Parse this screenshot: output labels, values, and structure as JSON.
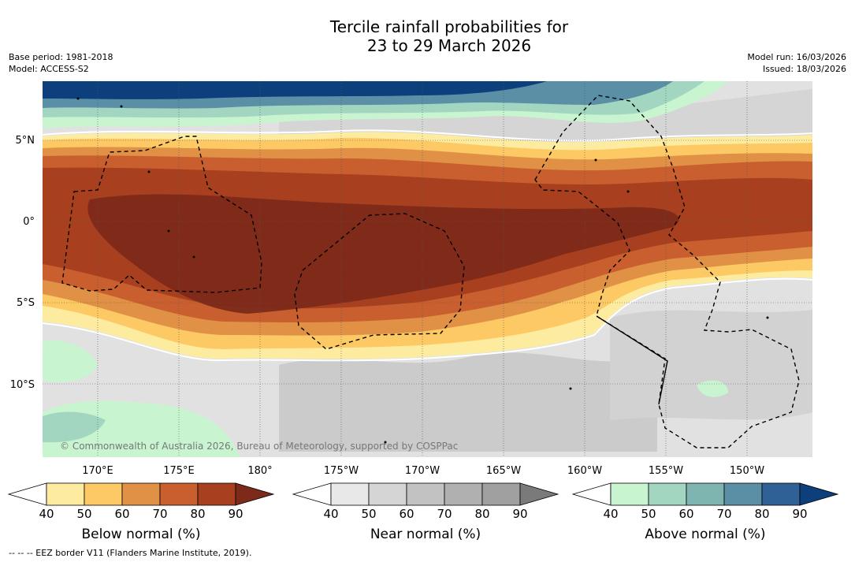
{
  "title": {
    "line1": "Tercile rainfall probabilities for",
    "line2": "23 to 29 March 2026"
  },
  "meta_left": {
    "base_period": "Base period: 1981-2018",
    "model": "Model: ACCESS-S2"
  },
  "meta_right": {
    "model_run": "Model run: 16/03/2026",
    "issued": "Issued: 18/03/2026"
  },
  "map": {
    "lat_labels": [
      "5°N",
      "0°",
      "5°S",
      "10°S"
    ],
    "lon_labels": [
      "170°E",
      "175°E",
      "180°",
      "175°W",
      "170°W",
      "165°W",
      "160°W",
      "155°W",
      "150°W"
    ],
    "copyright": "© Commonwealth of Australia 2026, Bureau of Meteorology, supported by COSPPac"
  },
  "colorbars": [
    {
      "title": "Below normal (%)",
      "ticks": [
        "40",
        "50",
        "60",
        "70",
        "80",
        "90"
      ],
      "colors": [
        "#fdeca0",
        "#fdc965",
        "#e09146",
        "#c95e2e",
        "#a8401f",
        "#7d2a1a"
      ]
    },
    {
      "title": "Near normal (%)",
      "ticks": [
        "40",
        "50",
        "60",
        "70",
        "80",
        "90"
      ],
      "colors": [
        "#e8e8e8",
        "#d5d5d5",
        "#c2c2c2",
        "#b0b0b0",
        "#a0a0a0",
        "#7a7a7a"
      ]
    },
    {
      "title": "Above normal (%)",
      "ticks": [
        "40",
        "50",
        "60",
        "70",
        "80",
        "90"
      ],
      "colors": [
        "#c8f5cf",
        "#a3d6c1",
        "#7fb5b1",
        "#5b8fa6",
        "#2f6096",
        "#0c3f7c"
      ]
    }
  ],
  "footnote": "--  --  -- EEZ border V11 (Flanders Marine Institute, 2019)."
}
